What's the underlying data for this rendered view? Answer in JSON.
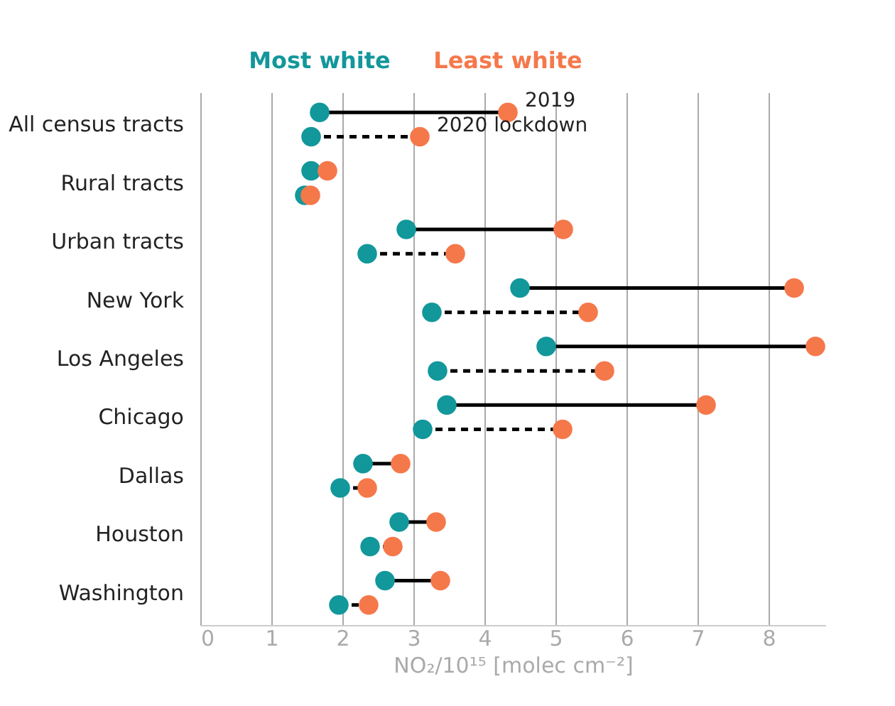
{
  "chart_data": {
    "type": "scatter",
    "orientation": "horizontal",
    "xlabel": "NO₂/10¹⁵ [molec cm⁻²]",
    "categories": [
      "All census tracts",
      "Rural tracts",
      "Urban tracts",
      "New York",
      "Los Angeles",
      "Chicago",
      "Dallas",
      "Houston",
      "Washington"
    ],
    "series": [
      {
        "name": "Most white",
        "color": "#12979b",
        "line_style": "solid",
        "values": [
          1.68,
          1.56,
          2.9,
          4.5,
          4.87,
          3.47,
          2.29,
          2.8,
          2.6
        ]
      },
      {
        "name": "Least white",
        "color": "#f5784a",
        "values": [
          4.33,
          1.79,
          5.11,
          8.36,
          8.66,
          7.12,
          2.82,
          3.32,
          3.38
        ]
      },
      {
        "color": "#12979b",
        "line_style": "dashed",
        "values": [
          1.56,
          1.47,
          2.35,
          3.26,
          3.34,
          3.13,
          1.97,
          2.39,
          1.95
        ]
      },
      {
        "color": "#f5784a",
        "values": [
          3.09,
          1.55,
          3.59,
          5.46,
          5.69,
          5.1,
          2.35,
          2.71,
          2.37
        ]
      }
    ],
    "annotations": [
      "2019",
      "2020 lockdown"
    ],
    "xlim": [
      0,
      8.8
    ],
    "xticks": [
      0,
      1,
      2,
      3,
      4,
      5,
      6,
      7,
      8
    ],
    "grid": "x",
    "legend": "top",
    "marker": "circle"
  }
}
